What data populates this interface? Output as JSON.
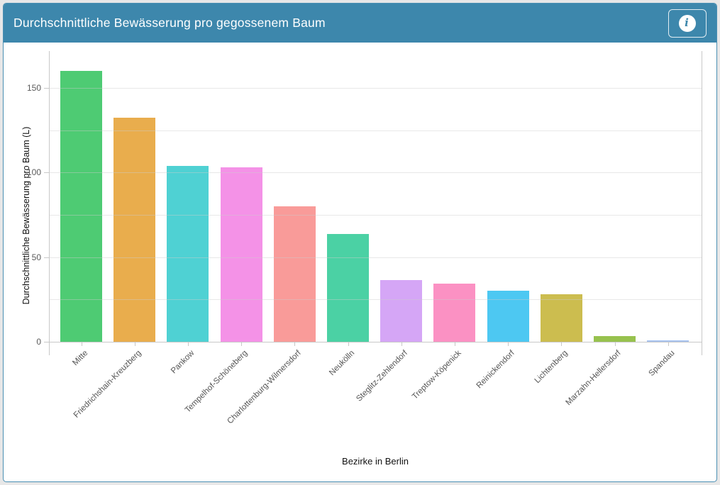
{
  "header": {
    "title": "Durchschnittliche Bewässerung pro gegossenem Baum",
    "info_glyph": "i",
    "background": "#3d87ac"
  },
  "chart_data": {
    "type": "bar",
    "title": "Durchschnittliche Bewässerung pro gegossenem Baum",
    "xlabel": "Bezirke in Berlin",
    "ylabel": "Durchschnittliche Bewässerung pro Baum (L)",
    "ylim": [
      0,
      169
    ],
    "yticks": [
      0,
      50,
      100,
      150
    ],
    "gridline_values": [
      25,
      50,
      75,
      100,
      125,
      150
    ],
    "grid": true,
    "legend": "none",
    "categories": [
      "Mitte",
      "Friedrichshain-Kreuzberg",
      "Pankow",
      "Tempelhof-Schöneberg",
      "Charlottenburg-Wilmersdorf",
      "Neukölln",
      "Steglitz-Zehlendorf",
      "Treptow-Köpenick",
      "Reinickendorf",
      "Lichtenberg",
      "Marzahn-Hellersdorf",
      "Spandau"
    ],
    "values": [
      160,
      132.5,
      104,
      103,
      80,
      63.5,
      36.5,
      34.5,
      30,
      28,
      3.5,
      0.8
    ],
    "bar_colors": [
      "#4ecb73",
      "#e9ad4d",
      "#4fd1d3",
      "#f492e7",
      "#f99b99",
      "#4bd1a4",
      "#d5a6f6",
      "#fb91c3",
      "#4dc8f2",
      "#ccbd4f",
      "#97c24e",
      "#a7c3ef"
    ],
    "colors": {
      "header_bg": "#3d87ac",
      "card_border": "#4b90b4",
      "grid": "#e2e2e2",
      "axis": "#c8c8c8",
      "tick_text": "#555555",
      "axis_title_text": "#111111"
    }
  }
}
